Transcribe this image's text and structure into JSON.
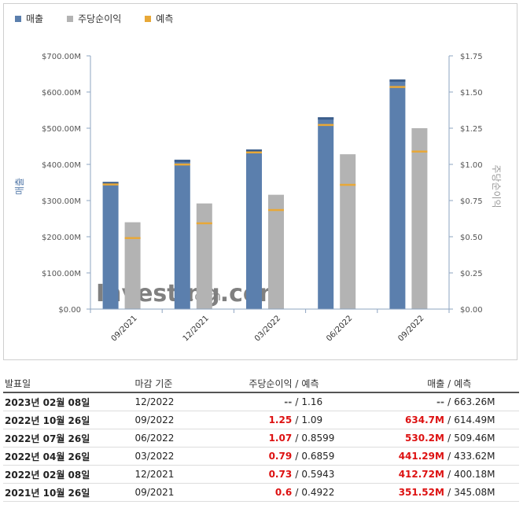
{
  "legend": {
    "revenue": "매출",
    "eps": "주당순이익",
    "forecast": "예측"
  },
  "colors": {
    "revenue": "#5b7fad",
    "eps": "#b3b3b3",
    "forecast": "#e8a838",
    "positive": "#d11111"
  },
  "chart_data": {
    "type": "bar",
    "categories": [
      "09/2021",
      "12/2021",
      "03/2022",
      "06/2022",
      "09/2022"
    ],
    "series": [
      {
        "name": "매출",
        "axis": "left",
        "values": [
          351.52,
          412.72,
          441.29,
          530.2,
          634.7
        ],
        "forecast": [
          345.08,
          400.18,
          433.62,
          509.46,
          614.49
        ]
      },
      {
        "name": "주당순이익",
        "axis": "right",
        "values": [
          0.6,
          0.73,
          0.79,
          1.07,
          1.25
        ],
        "forecast": [
          0.4922,
          0.5943,
          0.6859,
          0.8599,
          1.09
        ]
      }
    ],
    "ylabel_left": "매출",
    "ylabel_right": "주당순이익",
    "ylim_left": [
      0,
      700
    ],
    "ylim_right": [
      0,
      1.75
    ],
    "yticks_left": [
      "$0.00",
      "$100.00M",
      "$200.00M",
      "$300.00M",
      "$400.00M",
      "$500.00M",
      "$600.00M",
      "$700.00M"
    ],
    "yticks_right": [
      "$0.00",
      "$0.25",
      "$0.50",
      "$0.75",
      "$1.00",
      "$1.25",
      "$1.50",
      "$1.75"
    ],
    "watermark": "Investing.com"
  },
  "table": {
    "headers": {
      "date": "발표일",
      "period": "마감 기준",
      "eps": "주당순이익",
      "sep1": "/",
      "eps_forecast": "예측",
      "revenue": "매출",
      "sep2": "/",
      "revenue_forecast": "예측"
    },
    "rows": [
      {
        "date": "2023년 02월 08일",
        "period": "12/2022",
        "eps": "--",
        "sep1": "/",
        "eps_forecast": "1.16",
        "revenue": "--",
        "sep2": "/",
        "revenue_forecast": "663.26M"
      },
      {
        "date": "2022년 10월 26일",
        "period": "09/2022",
        "eps": "1.25",
        "sep1": "/",
        "eps_forecast": "1.09",
        "revenue": "634.7M",
        "sep2": "/",
        "revenue_forecast": "614.49M"
      },
      {
        "date": "2022년 07월 26일",
        "period": "06/2022",
        "eps": "1.07",
        "sep1": "/",
        "eps_forecast": "0.8599",
        "revenue": "530.2M",
        "sep2": "/",
        "revenue_forecast": "509.46M"
      },
      {
        "date": "2022년 04월 26일",
        "period": "03/2022",
        "eps": "0.79",
        "sep1": "/",
        "eps_forecast": "0.6859",
        "revenue": "441.29M",
        "sep2": "/",
        "revenue_forecast": "433.62M"
      },
      {
        "date": "2022년 02월 08일",
        "period": "12/2021",
        "eps": "0.73",
        "sep1": "/",
        "eps_forecast": "0.5943",
        "revenue": "412.72M",
        "sep2": "/",
        "revenue_forecast": "400.18M"
      },
      {
        "date": "2021년 10월 26일",
        "period": "09/2021",
        "eps": "0.6",
        "sep1": "/",
        "eps_forecast": "0.4922",
        "revenue": "351.52M",
        "sep2": "/",
        "revenue_forecast": "345.08M"
      }
    ]
  }
}
